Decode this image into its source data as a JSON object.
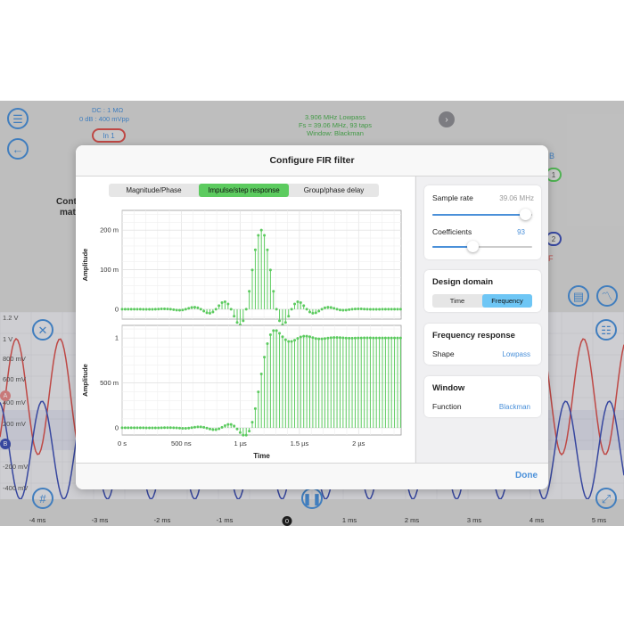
{
  "background": {
    "input_info": [
      "DC : 1 MΩ",
      "0 dB : 400 mVpp"
    ],
    "input_button": "In 1",
    "filter_info": [
      "3.906 MHz Lowpass",
      "Fs = 39.06 MHz, 93 taps",
      "Window: Blackman"
    ],
    "left_text": [
      "Cont",
      "mat"
    ],
    "right_partial": [
      "B",
      "1",
      "2",
      "F"
    ],
    "y_labels": [
      "1.2 V",
      "1 V",
      "800 mV",
      "600 mV",
      "400 mV",
      "200 mV",
      "0",
      "-200 mV",
      "-400 mV"
    ],
    "x_labels": [
      "-4 ms",
      "-3 ms",
      "-2 ms",
      "-1 ms",
      "0",
      "1 ms",
      "2 ms",
      "3 ms",
      "4 ms",
      "5 ms"
    ],
    "channel_markers": [
      "A",
      "B"
    ],
    "colors": {
      "channel_a": "#d9534f",
      "channel_b": "#3f51b5",
      "accent": "#4a90d9"
    }
  },
  "modal": {
    "title": "Configure FIR filter",
    "tabs": [
      {
        "label": "Magnitude/Phase",
        "active": false
      },
      {
        "label": "Impulse/step response",
        "active": true
      },
      {
        "label": "Group/phase delay",
        "active": false
      }
    ],
    "done_label": "Done",
    "sample_rate": {
      "label": "Sample rate",
      "value": "39.06",
      "unit": "MHz",
      "slider_fraction": 0.93
    },
    "coefficients": {
      "label": "Coefficients",
      "value": "93",
      "slider_fraction": 0.41
    },
    "design_domain": {
      "title": "Design domain",
      "options": [
        {
          "label": "Time",
          "active": false
        },
        {
          "label": "Frequency",
          "active": true
        }
      ]
    },
    "frequency_response": {
      "title": "Frequency response",
      "shape_label": "Shape",
      "shape_value": "Lowpass"
    },
    "window": {
      "title": "Window",
      "function_label": "Function",
      "function_value": "Blackman"
    }
  },
  "chart_data": [
    {
      "type": "scatter",
      "ylabel": "Amplitude",
      "yticks": [
        {
          "v": 0,
          "label": "0"
        },
        {
          "v": 0.1,
          "label": "100 m"
        },
        {
          "v": 0.2,
          "label": "200 m"
        }
      ],
      "ylim": [
        -0.025,
        0.25
      ],
      "xlim_ns": [
        0,
        2360
      ],
      "grid": true,
      "color": "#5ccb5f",
      "sample_period_ns": 25.6,
      "taps": 93,
      "center_tap": 46,
      "cutoff_ratio": 0.1,
      "window": "Blackman",
      "description": "impulse response"
    },
    {
      "type": "scatter",
      "ylabel": "Amplitude",
      "xlabel": "Time",
      "yticks": [
        {
          "v": 0,
          "label": "0"
        },
        {
          "v": 0.5,
          "label": "500 m"
        },
        {
          "v": 1.0,
          "label": "1"
        }
      ],
      "xticks": [
        {
          "v": 0,
          "label": "0 s"
        },
        {
          "v": 500,
          "label": "500 ns"
        },
        {
          "v": 1000,
          "label": "1 µs"
        },
        {
          "v": 1500,
          "label": "1.5 µs"
        },
        {
          "v": 2000,
          "label": "2 µs"
        }
      ],
      "ylim": [
        -0.08,
        1.14
      ],
      "xlim_ns": [
        0,
        2360
      ],
      "grid": true,
      "color": "#5ccb5f",
      "description": "step response"
    }
  ]
}
